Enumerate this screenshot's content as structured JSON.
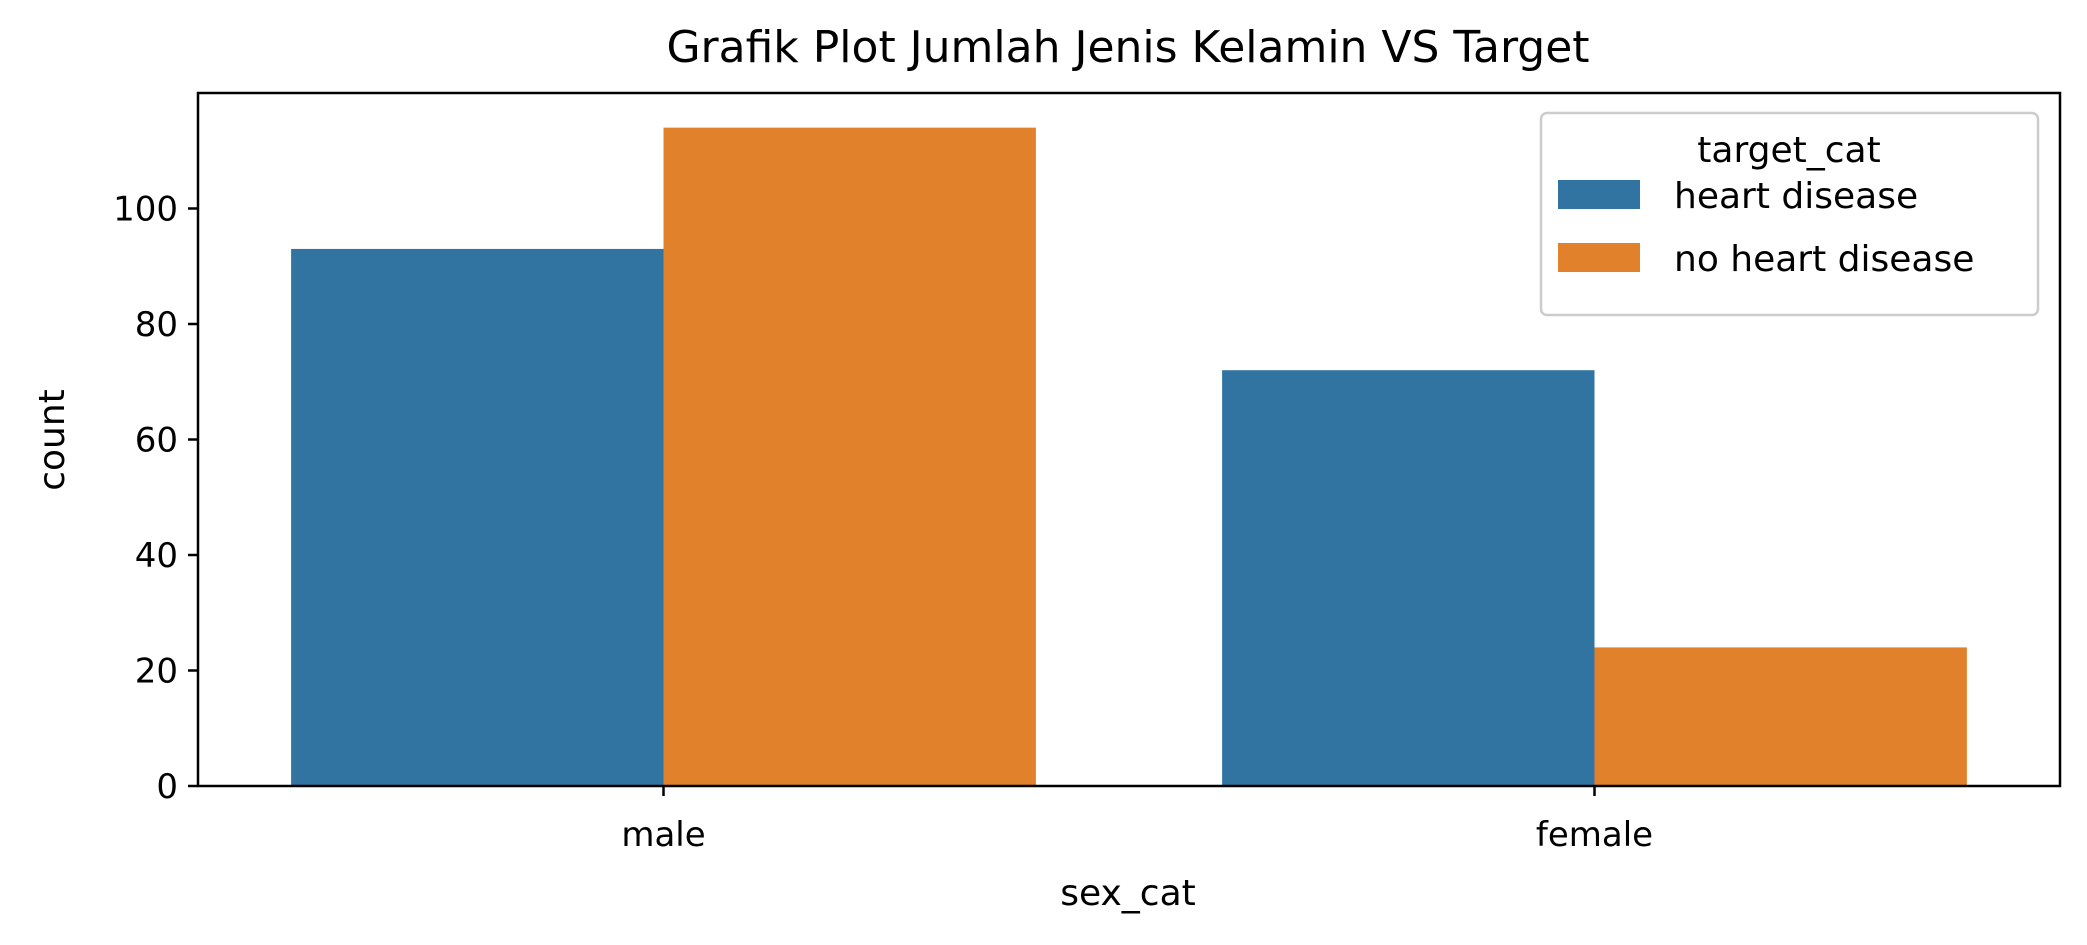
{
  "chart_data": {
    "type": "bar",
    "title": "Grafik Plot Jumlah Jenis Kelamin VS Target",
    "xlabel": "sex_cat",
    "ylabel": "count",
    "categories": [
      "male",
      "female"
    ],
    "series": [
      {
        "name": "heart disease",
        "values": [
          93,
          72
        ],
        "color": "#3274a1"
      },
      {
        "name": "no heart disease",
        "values": [
          114,
          24
        ],
        "color": "#e1812c"
      }
    ],
    "ylim": [
      0,
      120
    ],
    "yticks": [
      0,
      20,
      40,
      60,
      80,
      100
    ],
    "grid": false,
    "legend": {
      "title": "target_cat",
      "position": "top-right"
    }
  }
}
